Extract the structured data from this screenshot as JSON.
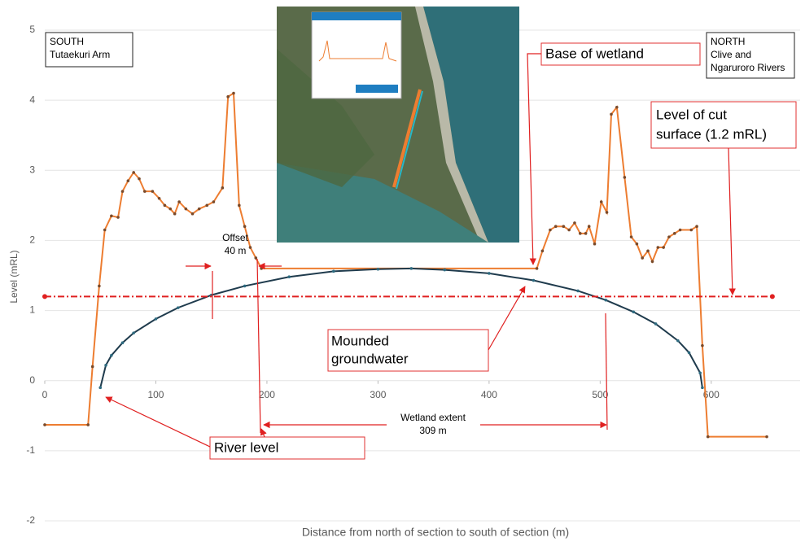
{
  "chart_data": {
    "type": "line",
    "x_label": "Distance from north of section to south of section (m)",
    "y_label": "Level (mRL)",
    "xlim": [
      0,
      680
    ],
    "ylim": [
      -2,
      5
    ],
    "xticks": [
      0,
      100,
      200,
      300,
      400,
      500,
      600
    ],
    "yticks": [
      -2,
      -1,
      0,
      1,
      2,
      3,
      4,
      5
    ],
    "grid": true,
    "series": [
      {
        "color": "#ed7d31",
        "marker_color": "#7a4a2a",
        "line_style": "solid",
        "x": [
          0,
          39,
          43,
          49,
          54,
          60,
          66,
          70,
          75,
          80,
          85,
          90,
          97,
          103,
          108,
          113,
          117,
          121,
          127,
          133,
          139,
          146,
          152,
          160,
          165,
          170,
          175,
          180,
          185,
          190,
          195,
          443,
          448,
          455,
          460,
          467,
          472,
          477,
          482,
          487,
          490,
          495,
          501,
          506,
          510,
          515,
          522,
          528,
          533,
          538,
          543,
          547,
          552,
          557,
          562,
          567,
          572,
          582,
          587,
          592,
          597,
          650
        ],
        "values": [
          -0.63,
          -0.63,
          0.2,
          1.35,
          2.15,
          2.35,
          2.33,
          2.7,
          2.85,
          2.97,
          2.88,
          2.7,
          2.7,
          2.6,
          2.5,
          2.45,
          2.38,
          2.55,
          2.45,
          2.38,
          2.45,
          2.5,
          2.55,
          2.75,
          4.05,
          4.1,
          2.5,
          2.2,
          1.9,
          1.75,
          1.6,
          1.6,
          1.85,
          2.15,
          2.2,
          2.2,
          2.15,
          2.25,
          2.1,
          2.1,
          2.2,
          1.95,
          2.55,
          2.4,
          3.8,
          3.9,
          2.9,
          2.05,
          1.95,
          1.75,
          1.85,
          1.7,
          1.9,
          1.9,
          2.05,
          2.1,
          2.15,
          2.15,
          2.2,
          0.5,
          -0.8,
          -0.8
        ]
      },
      {
        "color": "#1f3b4d",
        "marker_color": "#2e6b80",
        "line_style": "solid",
        "x": [
          50,
          55,
          60,
          70,
          80,
          100,
          120,
          150,
          180,
          220,
          260,
          300,
          330,
          360,
          400,
          440,
          480,
          505,
          530,
          550,
          570,
          580,
          590,
          592
        ],
        "values": [
          -0.1,
          0.22,
          0.36,
          0.54,
          0.68,
          0.88,
          1.04,
          1.22,
          1.35,
          1.48,
          1.56,
          1.59,
          1.6,
          1.58,
          1.53,
          1.43,
          1.28,
          1.15,
          0.98,
          0.81,
          0.57,
          0.4,
          0.11,
          -0.1
        ]
      },
      {
        "color": "#e02020",
        "marker_color": "#e02020",
        "line_style": "dashdot",
        "x": [
          0,
          655
        ],
        "values": [
          1.2,
          1.2
        ]
      }
    ],
    "annotations": [
      {
        "lines": [
          "SOUTH",
          "Tutaekuri Arm"
        ]
      },
      {
        "lines": [
          "NORTH",
          "Clive and",
          "Ngaruroro Rivers"
        ]
      },
      {
        "lines": [
          "Base of wetland"
        ]
      },
      {
        "lines": [
          "Level of cut",
          "surface (1.2 mRL)"
        ]
      },
      {
        "lines": [
          "Offset",
          "40 m"
        ]
      },
      {
        "lines": [
          "Mounded",
          "groundwater"
        ]
      },
      {
        "lines": [
          "Wetland extent",
          "309 m"
        ]
      },
      {
        "lines": [
          "River level"
        ]
      }
    ]
  }
}
